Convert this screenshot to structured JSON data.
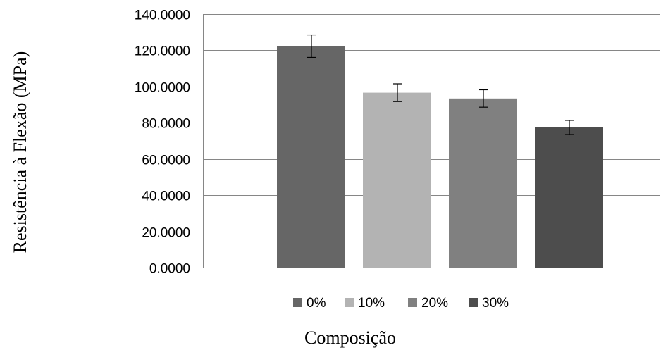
{
  "chart_data": {
    "type": "bar",
    "title": "",
    "xlabel": "Composição",
    "ylabel": "Resistência à Flexão (MPa)",
    "ylim": [
      0,
      140
    ],
    "y_ticks": [
      "0.0000",
      "20.0000",
      "40.0000",
      "60.0000",
      "80.0000",
      "100.0000",
      "120.0000",
      "140.0000"
    ],
    "grid": true,
    "legend_position": "bottom",
    "series": [
      {
        "name": "0%",
        "value": 122.3,
        "error": 6.2,
        "color": "#666666"
      },
      {
        "name": "10%",
        "value": 96.6,
        "error": 4.9,
        "color": "#b3b3b3"
      },
      {
        "name": "20%",
        "value": 93.4,
        "error": 4.8,
        "color": "#808080"
      },
      {
        "name": "30%",
        "value": 77.4,
        "error": 3.9,
        "color": "#4d4d4d"
      }
    ]
  }
}
